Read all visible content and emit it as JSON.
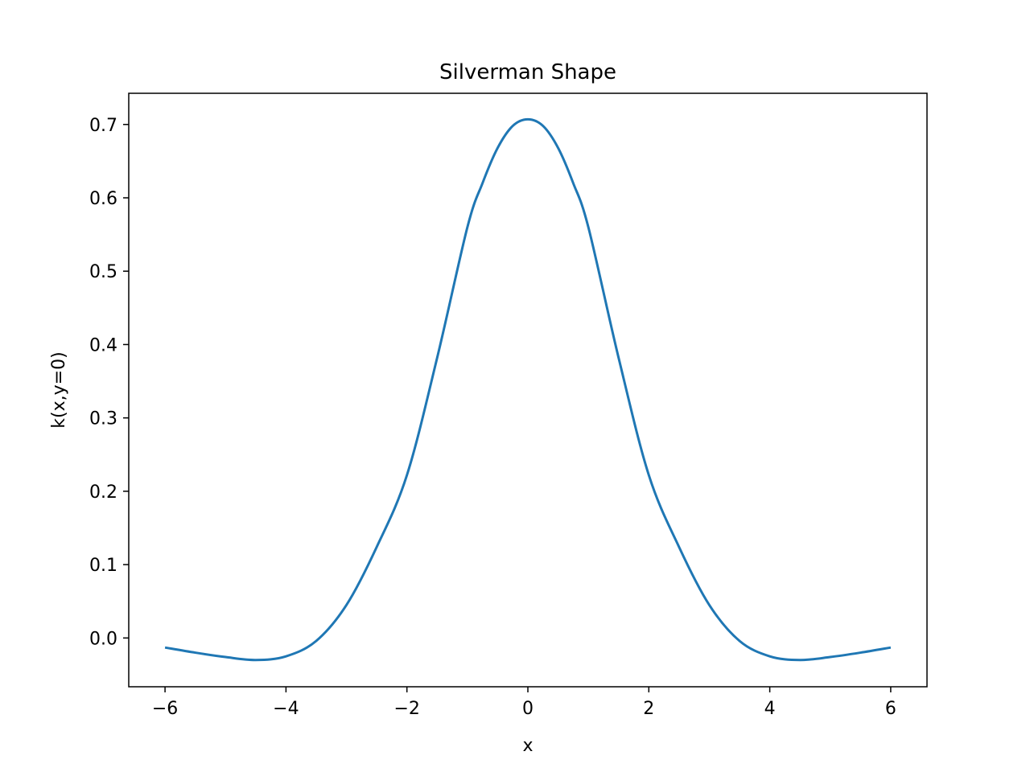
{
  "chart_data": {
    "type": "line",
    "title": "Silverman Shape",
    "xlabel": "x",
    "ylabel": "k(x,y=0)",
    "xlim": [
      -6.6,
      6.6
    ],
    "ylim": [
      -0.0665,
      0.7425
    ],
    "grid": false,
    "x_ticks": [
      -6,
      -4,
      -2,
      0,
      2,
      4,
      6
    ],
    "x_tick_labels": [
      "−6",
      "−4",
      "−2",
      "0",
      "2",
      "4",
      "6"
    ],
    "y_ticks": [
      0.0,
      0.1,
      0.2,
      0.3,
      0.4,
      0.5,
      0.6,
      0.7
    ],
    "y_tick_labels": [
      "0.0",
      "0.1",
      "0.2",
      "0.3",
      "0.4",
      "0.5",
      "0.6",
      "0.7"
    ],
    "series": [
      {
        "color": "#1f77b4",
        "x": [
          -6.0,
          -5.5,
          -5.0,
          -4.5,
          -4.0,
          -3.5,
          -3.0,
          -2.5,
          -2.0,
          -1.5,
          -1.0,
          -0.75,
          -0.5,
          -0.25,
          0.0,
          0.25,
          0.5,
          0.75,
          1.0,
          1.5,
          2.0,
          2.5,
          3.0,
          3.5,
          4.0,
          4.5,
          5.0,
          5.5,
          6.0
        ],
        "y": [
          -0.013,
          -0.02,
          -0.026,
          -0.03,
          -0.025,
          -0.004,
          0.045,
          0.124,
          0.222,
          0.382,
          0.56,
          0.62,
          0.668,
          0.698,
          0.707,
          0.698,
          0.668,
          0.62,
          0.56,
          0.382,
          0.222,
          0.124,
          0.045,
          -0.004,
          -0.025,
          -0.03,
          -0.026,
          -0.02,
          -0.013
        ]
      }
    ]
  }
}
